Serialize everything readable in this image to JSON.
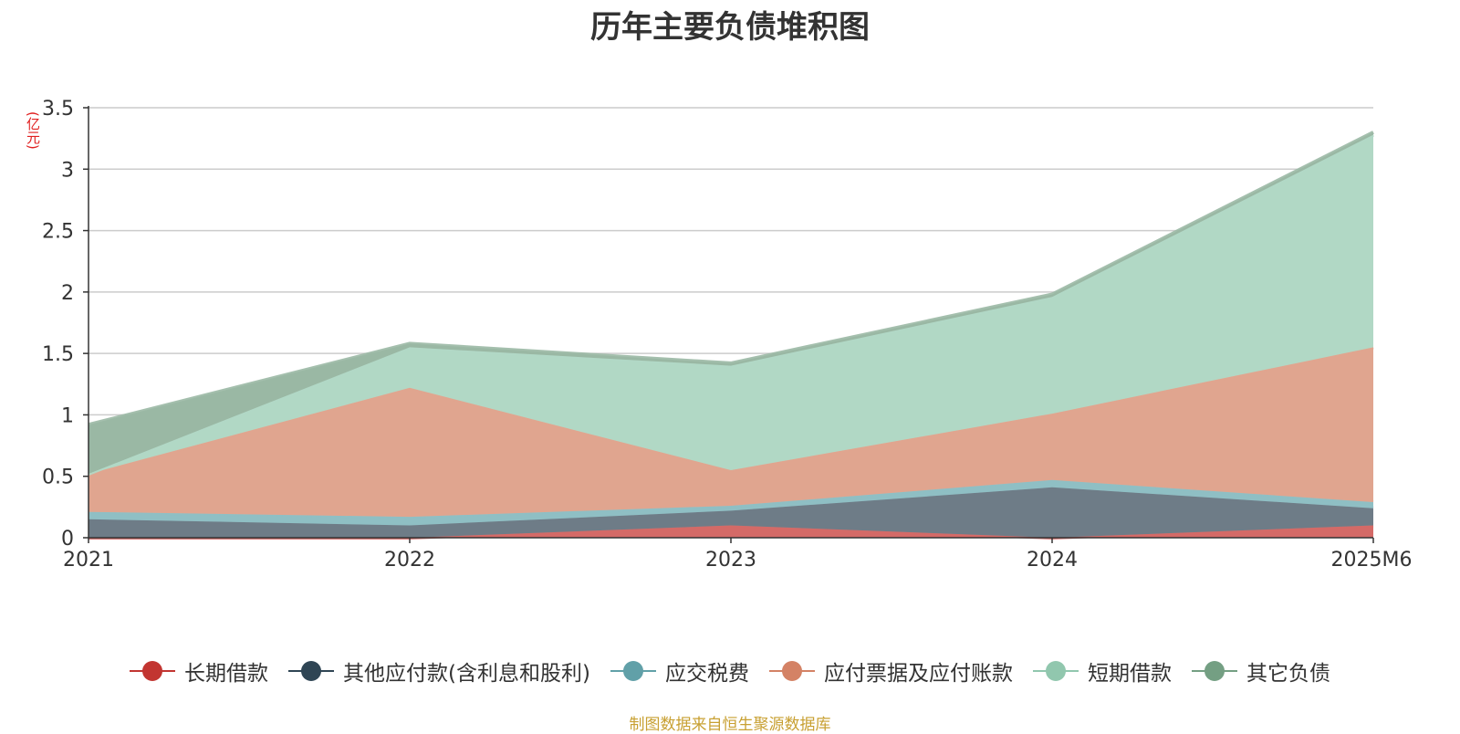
{
  "chart_data": {
    "type": "area",
    "stacked": true,
    "title": "历年主要负债堆积图",
    "unit_label": "(亿元)",
    "categories": [
      "2021",
      "2022",
      "2023",
      "2024",
      "2025M6"
    ],
    "ylim": [
      0,
      3.5
    ],
    "y_ticks": [
      "0",
      "0.5",
      "1",
      "1.5",
      "2",
      "2.5",
      "3",
      "3.5"
    ],
    "grid": true,
    "series": [
      {
        "name": "长期借款",
        "color": "#c23531",
        "fill": "#d46a67",
        "values": [
          0.0,
          0.0,
          0.1,
          0.0,
          0.1
        ]
      },
      {
        "name": "其他应付款(含利息和股利)",
        "color": "#2f4554",
        "fill": "#6e7c87",
        "values": [
          0.15,
          0.1,
          0.12,
          0.41,
          0.14
        ]
      },
      {
        "name": "应交税费",
        "color": "#61a0a8",
        "fill": "#8fbfc4",
        "values": [
          0.06,
          0.07,
          0.04,
          0.06,
          0.05
        ]
      },
      {
        "name": "应付票据及应付账款",
        "color": "#d48265",
        "fill": "#e0a58f",
        "values": [
          0.31,
          1.05,
          0.29,
          0.54,
          1.26
        ]
      },
      {
        "name": "短期借款",
        "color": "#91c7ae",
        "fill": "#b1d8c5",
        "values": [
          0.0,
          0.33,
          0.85,
          0.95,
          1.73
        ]
      },
      {
        "name": "其它负债",
        "color": "#749f83",
        "fill": "#9ab8a4",
        "values": [
          0.4,
          0.03,
          0.02,
          0.02,
          0.02
        ]
      }
    ],
    "legend_position": "bottom",
    "source": "制图数据来自恒生聚源数据库"
  }
}
